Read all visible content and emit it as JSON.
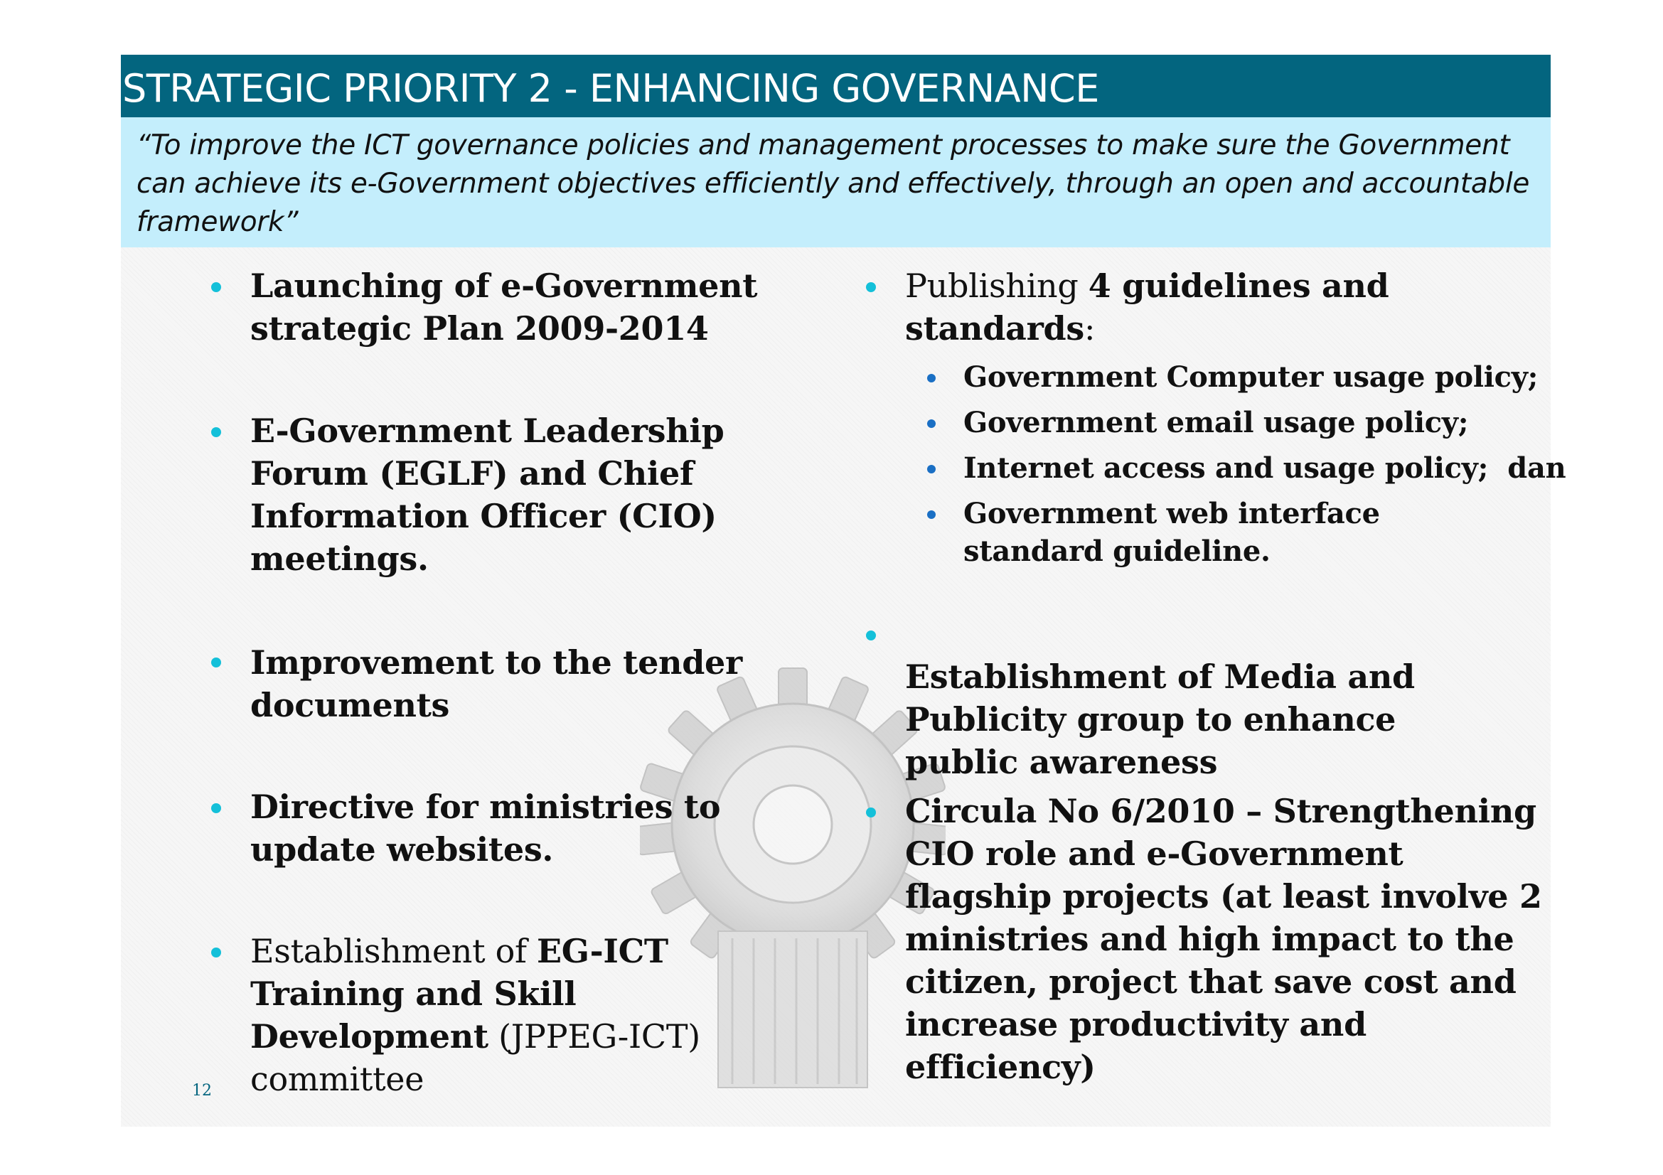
{
  "slide": {
    "title": "STRATEGIC PRIORITY 2 - ENHANCING GOVERNANCE",
    "quote": "“To improve the ICT governance policies and management processes to make sure the Government can achieve its e-Government objectives efficiently and effectively, through an open and accountable framework”",
    "page_number": "12"
  },
  "left_column": {
    "launching": "Launching of e-Government strategic Plan 2009-2014",
    "eglf": "E-Government Leadership Forum (EGLF) and Chief Information Officer (CIO) meetings.",
    "tender": "Improvement to the tender documents",
    "directive": "Directive for ministries to update websites.",
    "training": {
      "part1": "Establishment of ",
      "part2": "EG-ICT Training and Skill Development",
      "part3": " (JPPEG-ICT) committee"
    }
  },
  "right_column": {
    "publishing": {
      "part1": "Publishing ",
      "part2": "4 guidelines and standards",
      "part3": ":"
    },
    "sub_items": [
      "Government Computer usage policy;",
      "Government email usage policy;",
      "Internet access and usage policy;  dan",
      "Government web interface standard guideline."
    ],
    "media": "Establishment of  Media and Publicity group to enhance public awareness",
    "circula": "Circula No 6/2010 – Strengthening CIO role and e-Government flagship projects  (at least involve 2 ministries and high impact to the citizen, project that save cost and increase productivity and efficiency)"
  },
  "colors": {
    "title_bar": "#03657f",
    "quote_box": "#c4eefc",
    "bullet": "#14c0d9",
    "sub_bullet": "#1a6fc4"
  }
}
